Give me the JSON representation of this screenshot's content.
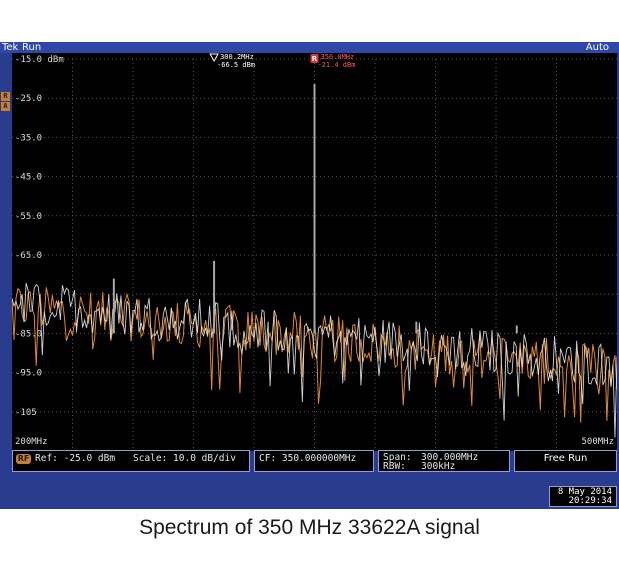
{
  "instrument": {
    "brand": "Tek",
    "status": "Run",
    "trigger": "Auto",
    "side_tags": [
      "R",
      "A"
    ]
  },
  "markers": [
    {
      "id": "none",
      "freq": "300.2MHz",
      "level": "-66.5 dBm",
      "color": "#ffffff"
    },
    {
      "id": "R",
      "freq": "350.0MHz",
      "level": "-21.4 dBm",
      "color": "#ff5555"
    }
  ],
  "settings": {
    "rf_badge": "RF",
    "ref": "Ref: -25.0 dBm",
    "scale": "Scale: 10.0 dB/div",
    "cf": "CF: 350.000000MHz",
    "span_label": "Span:",
    "span_value": "300.000MHz",
    "rbw_label": "RBW:",
    "rbw_value": "300kHz",
    "mode": "Free Run"
  },
  "freq_axis": {
    "start_label": "200MHz",
    "stop_label": "500MHz"
  },
  "datetime": {
    "date": "8 May 2014",
    "time": "20:29:34"
  },
  "caption": "Spectrum of 350 MHz 33622A signal",
  "colors": {
    "trace_orange": "#e08a2c",
    "trace_white": "#e8e8e8",
    "peak_gray": "#a8a8a8",
    "grid": "#555555",
    "bezel": "#2a3c8e"
  },
  "chart_data": {
    "type": "line",
    "xlabel": "",
    "ylabel": "",
    "x_range_mhz": [
      200,
      500
    ],
    "ylim": [
      -115,
      -15
    ],
    "y_ticks": [
      -15,
      -25,
      -35,
      -45,
      -55,
      -65,
      -75,
      -85,
      -95,
      -105
    ],
    "y_tick_labels": [
      "-15.0 dBm",
      "-25.0",
      "-35.0",
      "-45.0",
      "-55.0",
      "-65.0",
      "",
      "-85.0",
      "-95.0",
      "-105"
    ],
    "grid": true,
    "series": [
      {
        "color": "#e08a2c",
        "noise_floor_start_dbm": -78,
        "noise_floor_end_dbm": -94
      },
      {
        "color": "#e8e8e8",
        "noise_floor_start_dbm": -77,
        "noise_floor_end_dbm": -93
      }
    ],
    "peaks": [
      {
        "x": 350.0,
        "y": -21.4
      },
      {
        "x": 300.2,
        "y": -66.5
      },
      {
        "x": 250.5,
        "y": -71
      },
      {
        "x": 400.5,
        "y": -82
      },
      {
        "x": 450.3,
        "y": -83
      }
    ]
  }
}
